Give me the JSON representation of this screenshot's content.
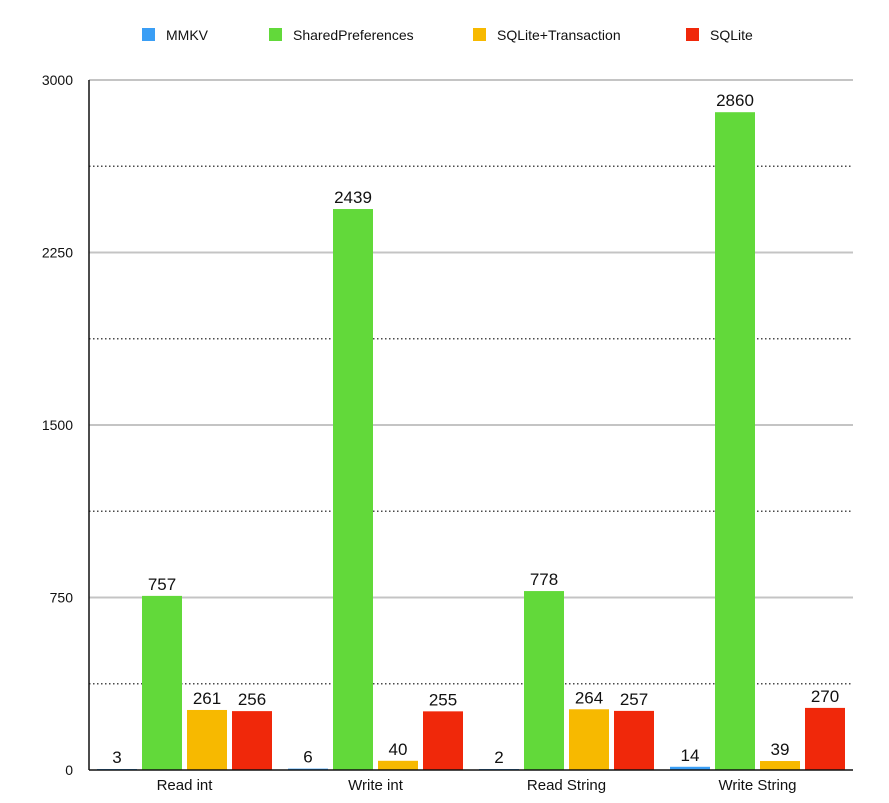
{
  "chart_data": {
    "type": "bar",
    "title": "",
    "xlabel": "",
    "ylabel": "",
    "ylim": [
      0,
      3000
    ],
    "yticks": [
      0,
      750,
      1500,
      2250,
      3000
    ],
    "minor_grid": [
      375,
      1125,
      1875,
      2625
    ],
    "grid": true,
    "legend_position": "top",
    "categories": [
      "Read int",
      "Write int",
      "Read String",
      "Write String"
    ],
    "series": [
      {
        "name": "MMKV",
        "color": "#3a9ef5",
        "values": [
          3,
          6,
          2,
          14
        ]
      },
      {
        "name": "SharedPreferences",
        "color": "#62d93a",
        "values": [
          757,
          2439,
          778,
          2860
        ]
      },
      {
        "name": "SQLite+Transaction",
        "color": "#f7b900",
        "values": [
          261,
          40,
          264,
          39
        ]
      },
      {
        "name": "SQLite",
        "color": "#f0280a",
        "values": [
          256,
          255,
          257,
          270
        ]
      }
    ]
  }
}
